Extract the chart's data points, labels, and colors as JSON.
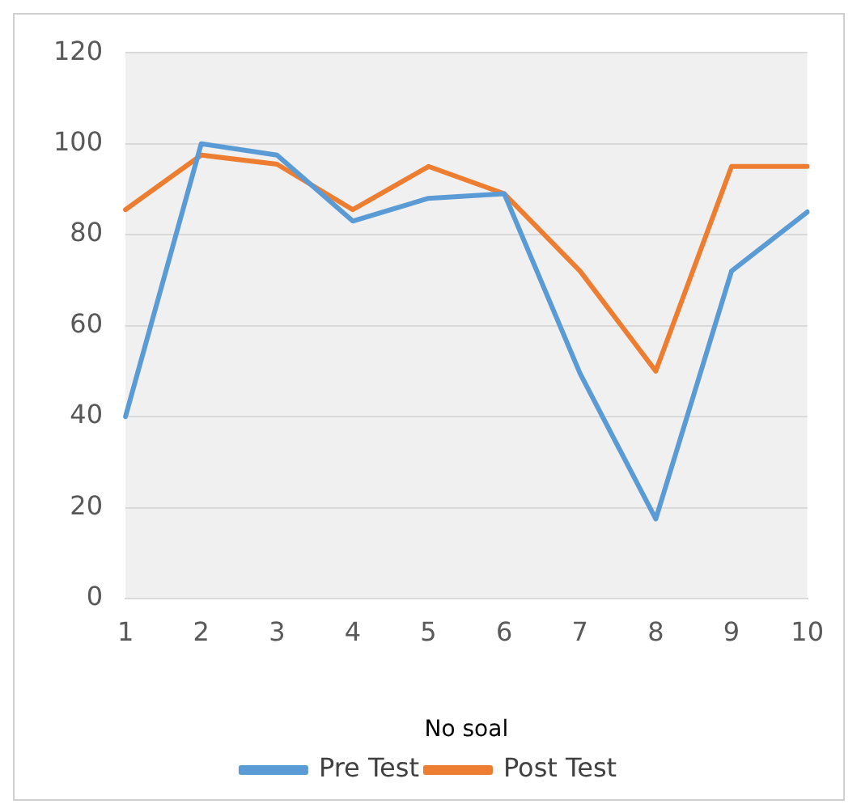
{
  "chart_data": {
    "type": "line",
    "xlabel": "No soal",
    "categories": [
      "1",
      "2",
      "3",
      "4",
      "5",
      "6",
      "7",
      "8",
      "9",
      "10"
    ],
    "series": [
      {
        "name": "Pre Test",
        "color": "#5b9bd5",
        "values": [
          40,
          100,
          97.5,
          83,
          88,
          89,
          49.5,
          17.5,
          72,
          85
        ]
      },
      {
        "name": "Post Test",
        "color": "#ed7d31",
        "values": [
          85.5,
          97.5,
          95.5,
          85.5,
          95,
          89,
          72,
          50,
          95,
          95
        ]
      }
    ],
    "ylim": [
      0,
      120
    ],
    "yticks": [
      0,
      20,
      40,
      60,
      80,
      100,
      120
    ],
    "grid": "y",
    "legend": "bottom",
    "marker": "none"
  }
}
